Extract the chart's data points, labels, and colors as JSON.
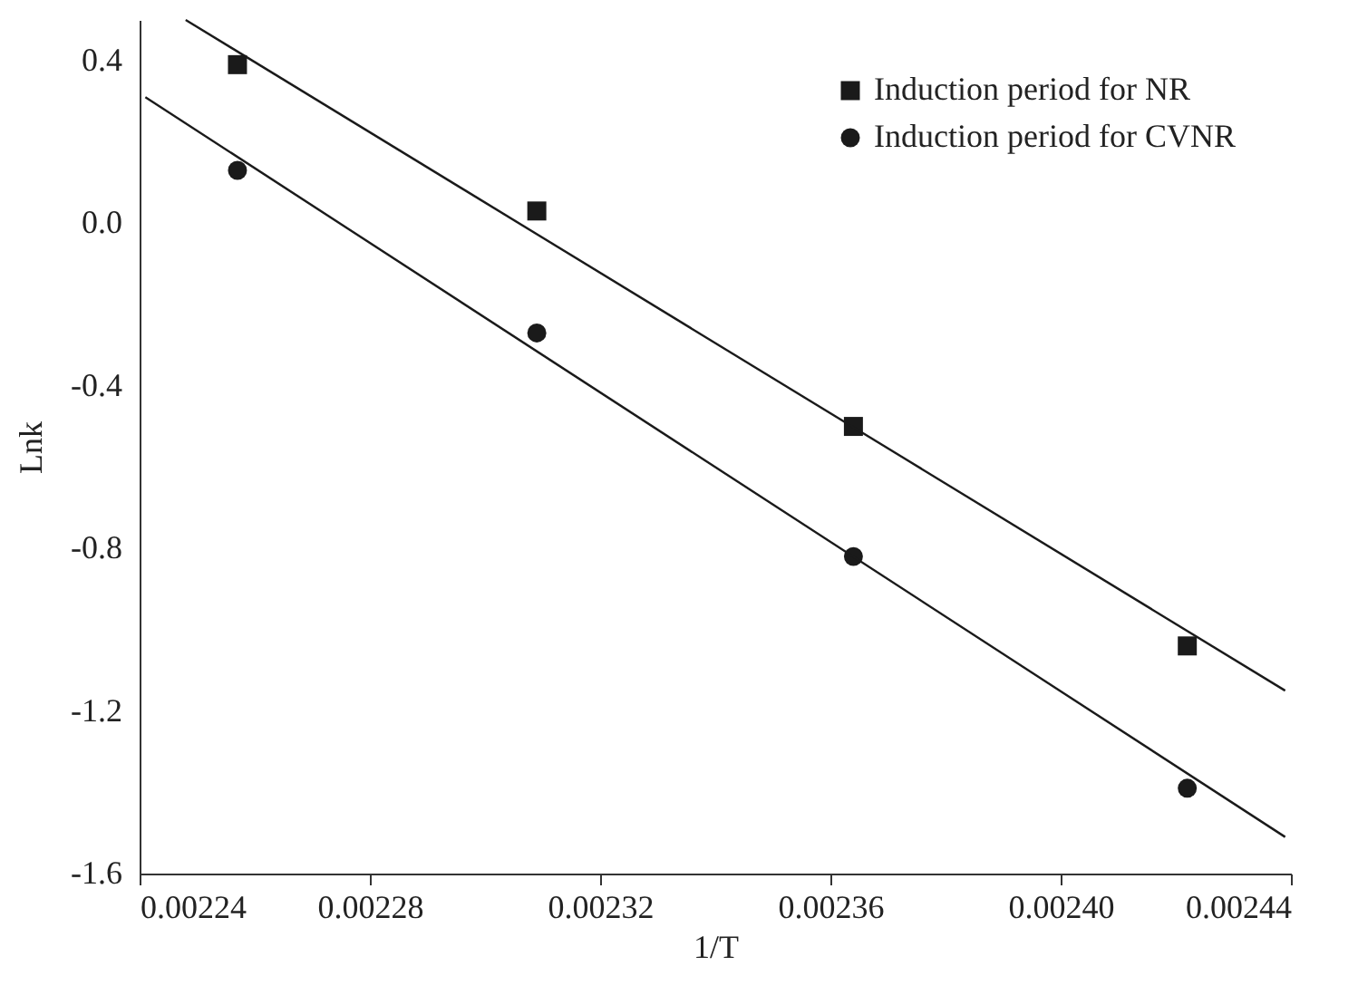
{
  "chart_data": {
    "type": "scatter",
    "xlabel": "1/T",
    "ylabel": "Lnk",
    "xlim": [
      0.00224,
      0.00244
    ],
    "ylim": [
      -1.6,
      0.5
    ],
    "xticks": [
      {
        "value": 0.00224,
        "label": "0.00224"
      },
      {
        "value": 0.00228,
        "label": "0.00228"
      },
      {
        "value": 0.00232,
        "label": "0.00232"
      },
      {
        "value": 0.00236,
        "label": "0.00236"
      },
      {
        "value": 0.0024,
        "label": "0.00240"
      },
      {
        "value": 0.00244,
        "label": "0.00244"
      }
    ],
    "yticks": [
      {
        "value": 0.4,
        "label": "0.4"
      },
      {
        "value": 0.0,
        "label": "0.0"
      },
      {
        "value": -0.4,
        "label": "-0.4"
      },
      {
        "value": -0.8,
        "label": "-0.8"
      },
      {
        "value": -1.2,
        "label": "-1.2"
      },
      {
        "value": -1.6,
        "label": "-1.6"
      }
    ],
    "grid": false,
    "legend": "top right",
    "series": [
      {
        "name": "Induction period for NR",
        "marker": "square",
        "color": "#1a1a1a",
        "x": [
          0.002257,
          0.002309,
          0.002364,
          0.002422
        ],
        "values": [
          0.39,
          0.03,
          -0.5,
          -1.04
        ]
      },
      {
        "name": "Induction period for CVNR",
        "marker": "circle",
        "color": "#1a1a1a",
        "x": [
          0.002257,
          0.002309,
          0.002364,
          0.002422
        ],
        "values": [
          0.13,
          -0.27,
          -0.82,
          -1.39
        ]
      },
      {
        "type": "line",
        "marker": "none",
        "color": "#1a1a1a",
        "x": [
          0.002248,
          0.002439
        ],
        "values": [
          0.5,
          -1.15
        ]
      },
      {
        "type": "line",
        "marker": "none",
        "color": "#1a1a1a",
        "x": [
          0.002241,
          0.002439
        ],
        "values": [
          0.31,
          -1.51
        ]
      }
    ]
  }
}
